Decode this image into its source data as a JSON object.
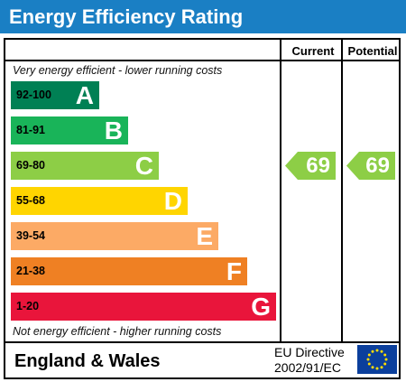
{
  "title": "Energy Efficiency Rating",
  "columns": {
    "current": "Current",
    "potential": "Potential"
  },
  "notes": {
    "top": "Very energy efficient - lower running costs",
    "bottom": "Not energy efficient - higher running costs"
  },
  "bands": [
    {
      "range": "92-100",
      "letter": "A",
      "color": "#008054",
      "text_color": "#000000"
    },
    {
      "range": "81-91",
      "letter": "B",
      "color": "#19b459",
      "text_color": "#000000"
    },
    {
      "range": "69-80",
      "letter": "C",
      "color": "#8dce46",
      "text_color": "#000000"
    },
    {
      "range": "55-68",
      "letter": "D",
      "color": "#ffd500",
      "text_color": "#000000"
    },
    {
      "range": "39-54",
      "letter": "E",
      "color": "#fcaa65",
      "text_color": "#000000"
    },
    {
      "range": "21-38",
      "letter": "F",
      "color": "#ef8023",
      "text_color": "#000000"
    },
    {
      "range": "1-20",
      "letter": "G",
      "color": "#e9153b",
      "text_color": "#000000"
    }
  ],
  "ratings": {
    "current": {
      "value": "69",
      "band": "C",
      "color": "#8dce46"
    },
    "potential": {
      "value": "69",
      "band": "C",
      "color": "#8dce46"
    }
  },
  "footer": {
    "country": "England & Wales",
    "directive_line1": "EU Directive",
    "directive_line2": "2002/91/EC",
    "flag_icon": "eu-flag-icon"
  }
}
